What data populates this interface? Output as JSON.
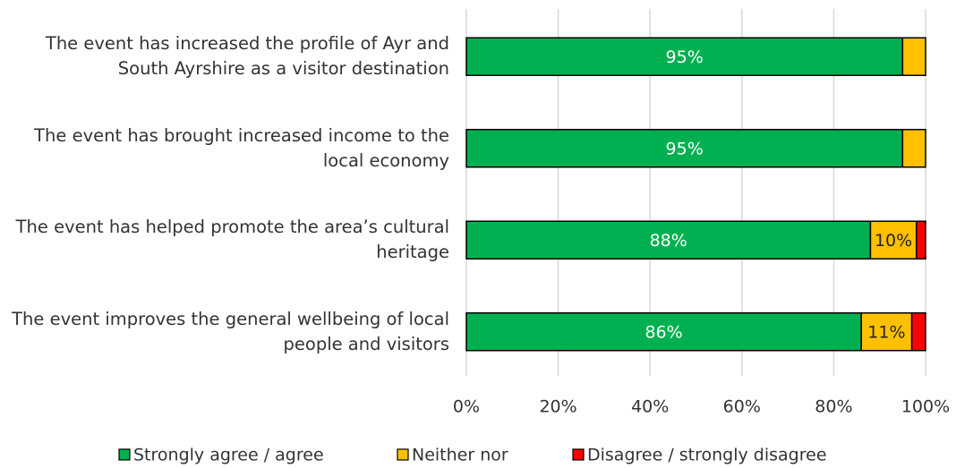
{
  "chart_data": {
    "type": "stacked-bar-horizontal",
    "categories": [
      "The event has increased the profile of Ayr and South Ayrshire as a visitor destination",
      "The event has brought increased income to the local economy",
      "The event has helped promote the area’s cultural heritage",
      "The event improves the general wellbeing of local people and visitors"
    ],
    "series": [
      {
        "name": "Strongly agree / agree",
        "color": "#00b050",
        "values": [
          95,
          95,
          88,
          86
        ],
        "value_labels": [
          "95%",
          "95%",
          "88%",
          "86%"
        ]
      },
      {
        "name": "Neither nor",
        "color": "#ffc000",
        "values": [
          5,
          5,
          10,
          11
        ],
        "value_labels": [
          null,
          null,
          "10%",
          "11%"
        ]
      },
      {
        "name": "Disagree / strongly disagree",
        "color": "#ff0000",
        "values": [
          0,
          0,
          2,
          3
        ]
      }
    ],
    "xlim": [
      0,
      100
    ],
    "xticks": [
      {
        "value": 0,
        "label": "0%"
      },
      {
        "value": 20,
        "label": "20%"
      },
      {
        "value": 40,
        "label": "40%"
      },
      {
        "value": 60,
        "label": "60%"
      },
      {
        "value": 80,
        "label": "80%"
      },
      {
        "value": 100,
        "label": "100%"
      }
    ],
    "grid": true,
    "legend": "bottom"
  }
}
